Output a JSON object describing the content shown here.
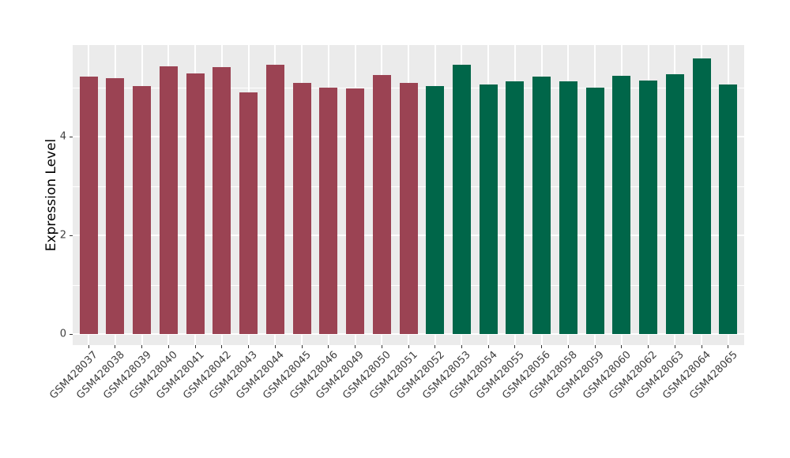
{
  "chart_data": {
    "type": "bar",
    "title": "",
    "xlabel": "",
    "ylabel": "Expression Level",
    "categories": [
      "GSM428037",
      "GSM428038",
      "GSM428039",
      "GSM428040",
      "GSM428041",
      "GSM428042",
      "GSM428043",
      "GSM428044",
      "GSM428045",
      "GSM428046",
      "GSM428049",
      "GSM428050",
      "GSM428051",
      "GSM428052",
      "GSM428053",
      "GSM428054",
      "GSM428055",
      "GSM428056",
      "GSM428058",
      "GSM428059",
      "GSM428060",
      "GSM428062",
      "GSM428063",
      "GSM428064",
      "GSM428065"
    ],
    "values": [
      5.22,
      5.18,
      5.03,
      5.43,
      5.28,
      5.41,
      4.9,
      5.46,
      5.09,
      4.99,
      4.98,
      5.25,
      5.09,
      5.02,
      5.45,
      5.06,
      5.12,
      5.22,
      5.12,
      5.0,
      5.24,
      5.14,
      5.27,
      5.58,
      5.06
    ],
    "bar_colors": [
      "#9B4353",
      "#9B4353",
      "#9B4353",
      "#9B4353",
      "#9B4353",
      "#9B4353",
      "#9B4353",
      "#9B4353",
      "#9B4353",
      "#9B4353",
      "#9B4353",
      "#9B4353",
      "#9B4353",
      "#006649",
      "#006649",
      "#006649",
      "#006649",
      "#006649",
      "#006649",
      "#006649",
      "#006649",
      "#006649",
      "#006649",
      "#006649",
      "#006649"
    ],
    "color_groups": [
      {
        "color": "#9B4353",
        "first_category": "GSM428037",
        "last_category": "GSM428051",
        "count": 13
      },
      {
        "color": "#006649",
        "first_category": "GSM428052",
        "last_category": "GSM428065",
        "count": 12
      }
    ],
    "ylim": [
      0,
      5.86
    ],
    "yticks": [
      0,
      2,
      4
    ],
    "yticks_minor": [
      1,
      3,
      5
    ],
    "ytick_labels": [
      "0",
      "2",
      "4"
    ],
    "x_tick_label_rotation_deg": 45,
    "grid": true,
    "legend": "none",
    "panel_background": "#EBEBEB",
    "gridline_color": "#FFFFFF",
    "axis_text_color": "#404040",
    "axis_title_color": "#000000"
  }
}
